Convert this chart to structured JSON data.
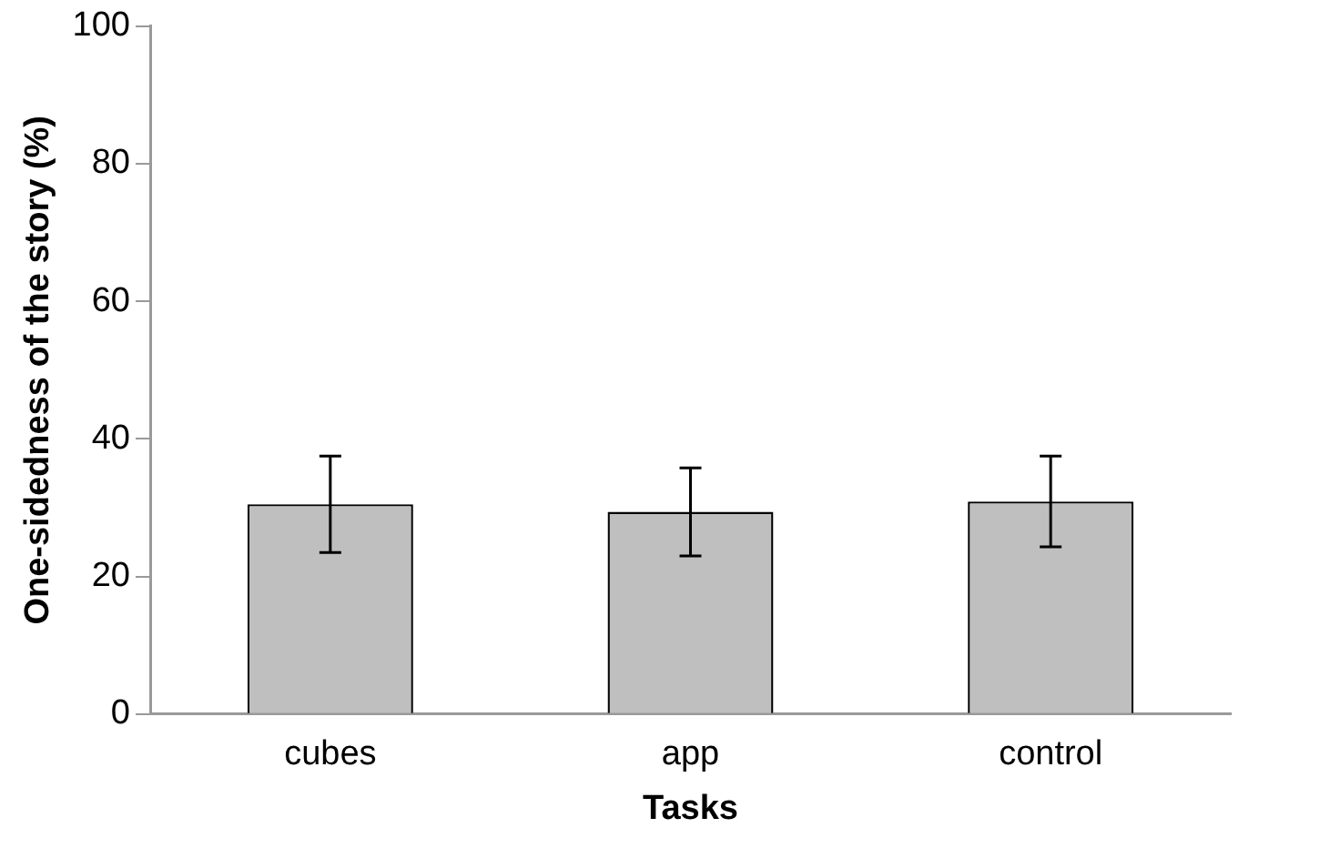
{
  "chart_data": {
    "type": "bar",
    "xlabel": "Tasks",
    "ylabel": "One-sidedness of the story (%)",
    "categories": [
      "cubes",
      "app",
      "control"
    ],
    "values": [
      30.5,
      29.4,
      30.9
    ],
    "errors": [
      7,
      6.4,
      6.6
    ],
    "color": "#bfbfbf",
    "ylim": [
      0,
      100
    ],
    "yticks": [
      0,
      20,
      40,
      60,
      80,
      100
    ],
    "grid": false,
    "legend": false
  }
}
